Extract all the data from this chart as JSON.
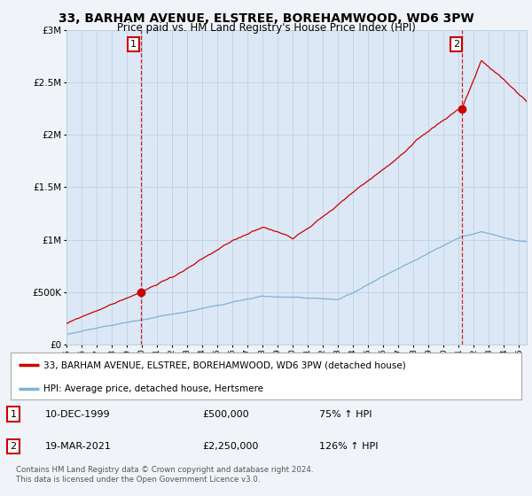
{
  "title": "33, BARHAM AVENUE, ELSTREE, BOREHAMWOOD, WD6 3PW",
  "subtitle": "Price paid vs. HM Land Registry's House Price Index (HPI)",
  "ytick_values": [
    0,
    500000,
    1000000,
    1500000,
    2000000,
    2500000,
    3000000
  ],
  "ylim": [
    0,
    3000000
  ],
  "xlim_start": 1995.0,
  "xlim_end": 2025.5,
  "x_ticks": [
    1995,
    1996,
    1997,
    1998,
    1999,
    2000,
    2001,
    2002,
    2003,
    2004,
    2005,
    2006,
    2007,
    2008,
    2009,
    2010,
    2011,
    2012,
    2013,
    2014,
    2015,
    2016,
    2017,
    2018,
    2019,
    2020,
    2021,
    2022,
    2023,
    2024,
    2025
  ],
  "sale1_x": 1999.94,
  "sale1_y": 500000,
  "sale2_x": 2021.21,
  "sale2_y": 2250000,
  "red_line_color": "#cc0000",
  "blue_line_color": "#7fb3d3",
  "bg_color": "#f0f4f8",
  "plot_bg_color": "#dce8f5",
  "grid_color": "#b8cfe0",
  "legend1_label": "33, BARHAM AVENUE, ELSTREE, BOREHAMWOOD, WD6 3PW (detached house)",
  "legend2_label": "HPI: Average price, detached house, Hertsmere",
  "annot1": "10-DEC-1999",
  "annot1_price": "£500,000",
  "annot1_hpi": "75% ↑ HPI",
  "annot2": "19-MAR-2021",
  "annot2_price": "£2,250,000",
  "annot2_hpi": "126% ↑ HPI",
  "footer": "Contains HM Land Registry data © Crown copyright and database right 2024.\nThis data is licensed under the Open Government Licence v3.0."
}
